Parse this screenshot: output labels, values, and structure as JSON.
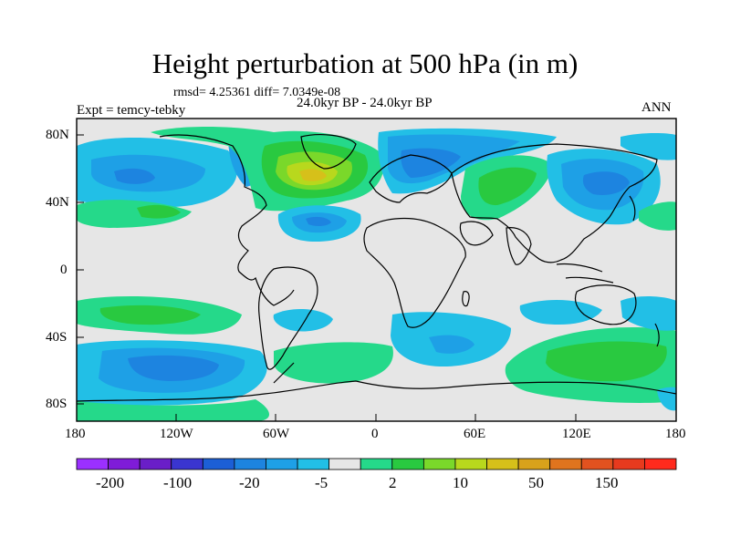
{
  "title": "Height perturbation at 500 hPa (in m)",
  "stats": "rmsd= 4.25361 diff= 7.0349e-08",
  "experiment": "Expt = temcy-tebky",
  "period": "24.0kyr BP - 24.0kyr BP",
  "season": "ANN",
  "lat_labels": [
    "80N",
    "40N",
    "0",
    "40S",
    "80S"
  ],
  "lon_labels": [
    "180",
    "120W",
    "60W",
    "0",
    "60E",
    "120E",
    "180"
  ],
  "colorbar": {
    "colors": [
      "#9b30ff",
      "#7f1cd8",
      "#6a1ec8",
      "#3a35d0",
      "#1c5fd6",
      "#1d84e0",
      "#1ea0e6",
      "#22bfe6",
      "#e6e6e6",
      "#25d98a",
      "#29c940",
      "#7ad82a",
      "#b8d81d",
      "#d6c01a",
      "#d8a21b",
      "#e0741e",
      "#e2521f",
      "#e83a1e",
      "#ff2a1d"
    ],
    "tick_labels": [
      "-200",
      "-100",
      "-20",
      "-5",
      "2",
      "10",
      "50",
      "150"
    ]
  }
}
